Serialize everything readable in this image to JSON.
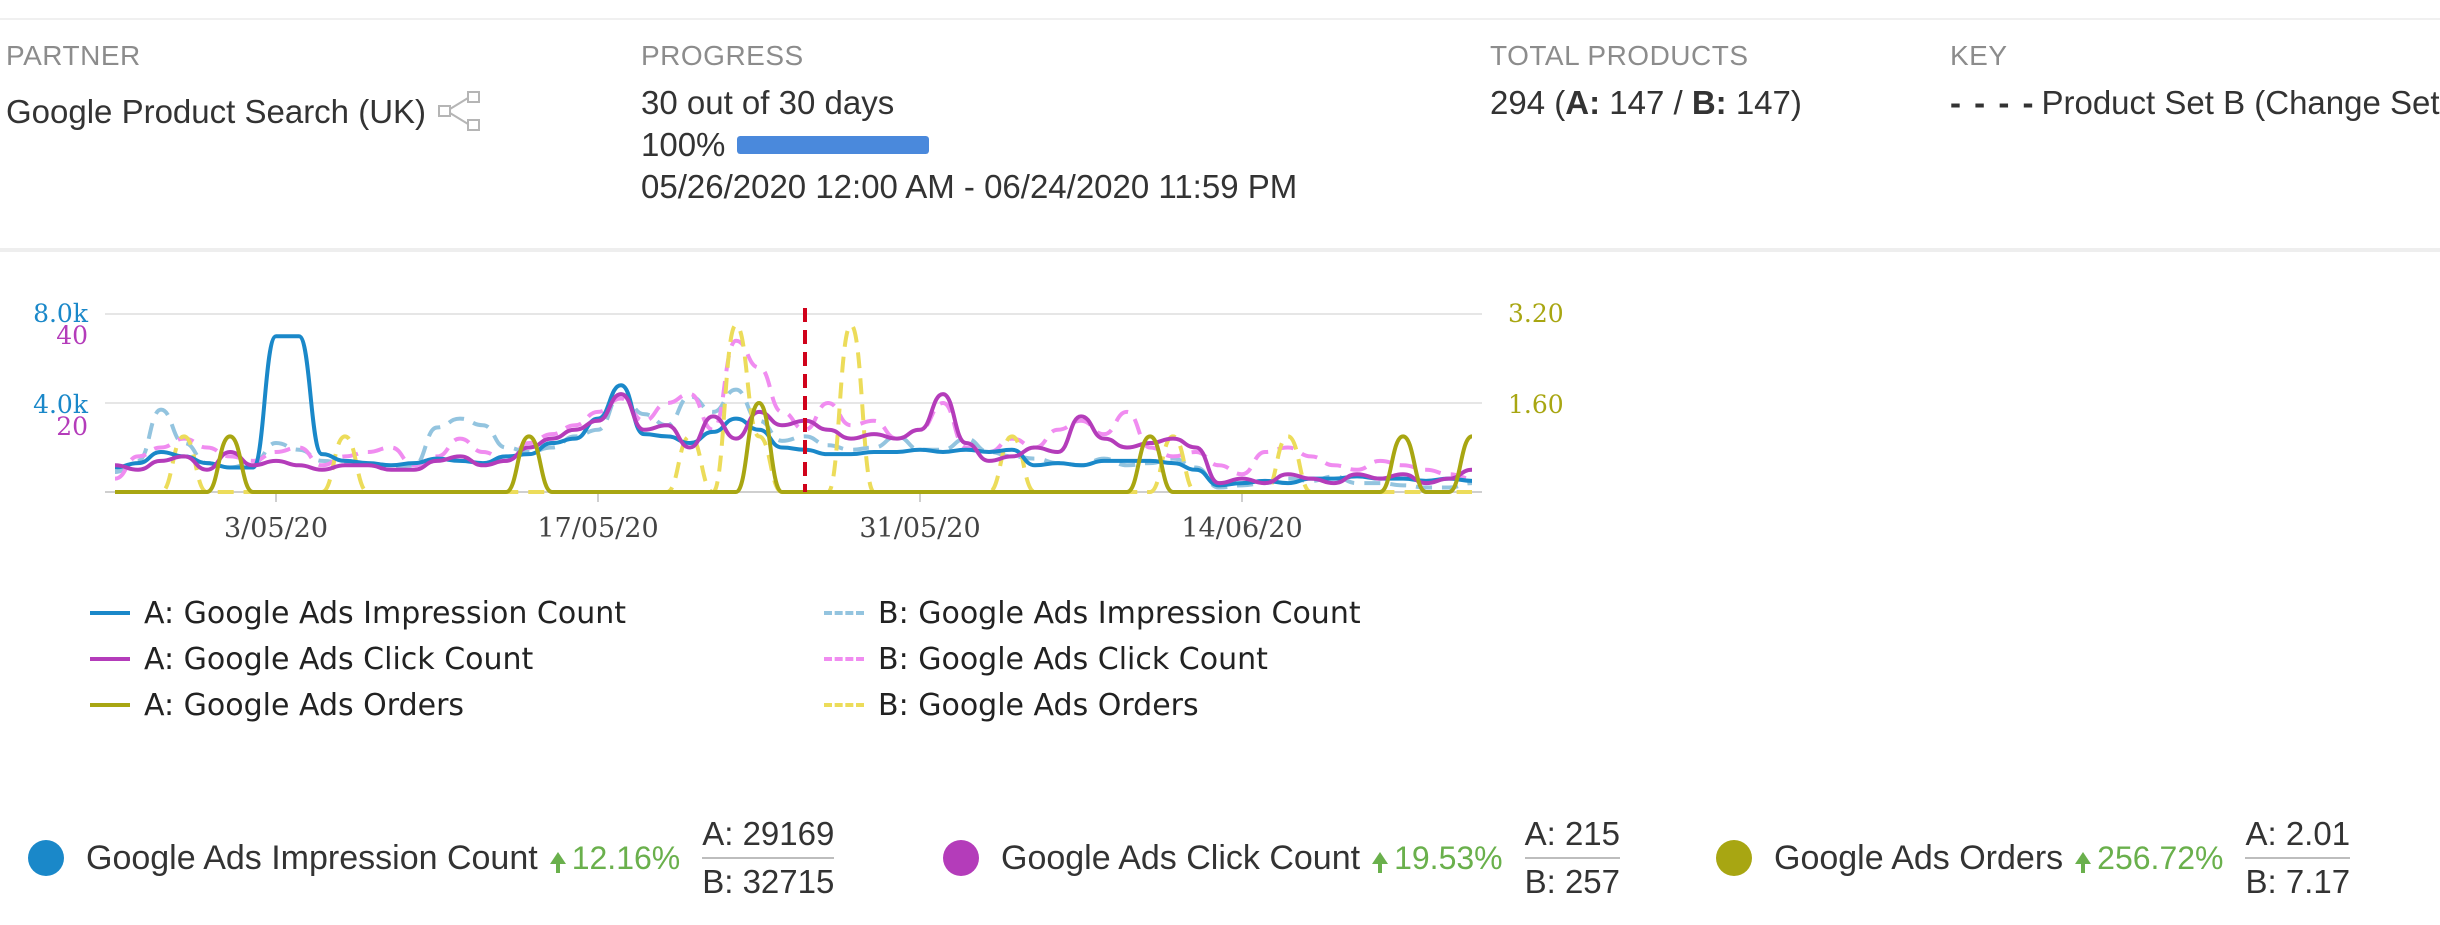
{
  "partner": {
    "label": "PARTNER",
    "name": "Google Product Search (UK)",
    "icon": "share-network-icon"
  },
  "progress": {
    "label": "PROGRESS",
    "days_text": "30 out of 30 days",
    "percent_text": "100%",
    "percent_value": 100,
    "range": "05/26/2020 12:00 AM - 06/24/2020 11:59 PM"
  },
  "total_products": {
    "label": "TOTAL PRODUCTS",
    "total": "294",
    "a_label": "A:",
    "a_value": "147",
    "b_label": "B:",
    "b_value": "147"
  },
  "key": {
    "label": "KEY",
    "dash": "- - - -",
    "text": "Product Set B (Change Set"
  },
  "colors": {
    "impression_a": "#1a88c9",
    "impression_b": "#93c4df",
    "click_a": "#b43cba",
    "click_b": "#f08cf0",
    "orders_a": "#a8a612",
    "orders_b": "#ecdc5a",
    "event_line": "#d0021b",
    "grid": "#e6e6e6",
    "up": "#6ab04c"
  },
  "chart_data": {
    "type": "line",
    "x_tick_labels": [
      "3/05/20",
      "17/05/20",
      "31/05/20",
      "14/06/20"
    ],
    "x_range": [
      "26/04/20",
      "24/06/20"
    ],
    "event_marker_date": "26/05/20",
    "axes": {
      "impressions": {
        "ticks": [
          "8.0k",
          "4.0k"
        ],
        "ylim": [
          0,
          8000
        ]
      },
      "clicks": {
        "ticks": [
          "40",
          "20"
        ],
        "ylim": [
          0,
          40
        ]
      },
      "orders": {
        "ticks": [
          "3.20",
          "1.60"
        ],
        "ylim": [
          0,
          3.2
        ]
      }
    },
    "series": [
      {
        "name": "A: Google Ads Impression Count",
        "axis": "impressions",
        "style": "solid",
        "values": [
          1100,
          1300,
          1800,
          1600,
          1300,
          1100,
          1100,
          7000,
          7000,
          1700,
          1400,
          1300,
          1200,
          1300,
          1500,
          1400,
          1300,
          1600,
          1700,
          2200,
          2400,
          3300,
          4800,
          2600,
          2500,
          2200,
          2700,
          3300,
          2800,
          2000,
          1900,
          1700,
          1700,
          1800,
          1800,
          1900,
          1800,
          1900,
          1800,
          1900,
          1200,
          1300,
          1200,
          1400,
          1400,
          1400,
          1300,
          1000,
          300,
          400,
          500,
          400,
          600,
          600,
          700,
          600,
          600,
          500,
          600,
          500
        ]
      },
      {
        "name": "B: Google Ads Impression Count",
        "axis": "impressions",
        "style": "dashed",
        "values": [
          900,
          1400,
          3700,
          2200,
          1300,
          1100,
          1300,
          2200,
          1900,
          1400,
          1300,
          1200,
          1100,
          1200,
          2900,
          3300,
          3000,
          2000,
          1800,
          2000,
          2500,
          2800,
          4400,
          3500,
          3000,
          4300,
          3600,
          4600,
          3200,
          2300,
          2500,
          2100,
          1900,
          2000,
          2500,
          1900,
          1900,
          2400,
          1800,
          1600,
          1500,
          1300,
          1200,
          1500,
          1200,
          1300,
          1500,
          1100,
          200,
          300,
          400,
          600,
          500,
          700,
          400,
          400,
          300,
          200,
          200,
          400
        ]
      },
      {
        "name": "A: Google Ads Click Count",
        "axis": "clicks",
        "style": "solid",
        "values": [
          6,
          5,
          7,
          8,
          5,
          9,
          6,
          7,
          6,
          5,
          6,
          6,
          5,
          5,
          7,
          8,
          6,
          7,
          10,
          12,
          14,
          16,
          22,
          14,
          15,
          10,
          17,
          12,
          18,
          15,
          16,
          14,
          12,
          13,
          12,
          14,
          22,
          11,
          7,
          8,
          10,
          9,
          17,
          12,
          10,
          11,
          12,
          10,
          2,
          3,
          2,
          4,
          3,
          2,
          4,
          3,
          4,
          2,
          3,
          5
        ]
      },
      {
        "name": "B: Google Ads Click Count",
        "axis": "clicks",
        "style": "dashed",
        "values": [
          3,
          8,
          10,
          12,
          10,
          8,
          7,
          9,
          10,
          6,
          8,
          9,
          10,
          6,
          8,
          12,
          9,
          7,
          11,
          13,
          15,
          18,
          21,
          16,
          20,
          22,
          14,
          34,
          28,
          18,
          14,
          20,
          15,
          16,
          12,
          14,
          20,
          10,
          9,
          12,
          10,
          14,
          16,
          13,
          18,
          10,
          8,
          9,
          6,
          4,
          9,
          10,
          8,
          6,
          5,
          7,
          6,
          5,
          4,
          3
        ]
      },
      {
        "name": "A: Google Ads Orders",
        "axis": "orders",
        "style": "solid",
        "values": [
          0,
          0,
          0,
          0,
          0,
          1,
          0,
          0,
          0,
          0,
          0,
          0,
          0,
          0,
          0,
          0,
          0,
          0,
          1,
          0,
          0,
          0,
          0,
          0,
          0,
          0,
          0,
          0,
          1.6,
          0,
          0,
          0,
          0,
          0,
          0,
          0,
          0,
          0,
          0,
          0,
          0,
          0,
          0,
          0,
          0,
          1,
          0,
          0,
          0,
          0,
          0,
          0,
          0,
          0,
          0,
          0,
          1,
          0,
          0,
          1
        ]
      },
      {
        "name": "B: Google Ads Orders",
        "axis": "orders",
        "style": "dashed",
        "values": [
          0,
          0,
          0,
          1,
          0,
          0,
          0,
          0,
          0,
          0,
          1,
          0,
          0,
          0,
          0,
          0,
          0,
          0,
          0,
          0,
          0,
          0,
          0,
          0,
          0,
          1,
          0,
          3,
          1,
          0,
          0,
          0,
          3.0,
          0,
          0,
          0,
          0,
          0,
          0,
          1,
          0,
          0,
          0,
          0,
          0,
          0,
          1,
          0,
          0,
          0,
          0,
          1,
          0,
          0,
          0,
          0,
          0,
          0,
          0,
          0
        ]
      }
    ]
  },
  "legend": {
    "left": [
      {
        "label": "A: Google Ads Impression Count",
        "color": "#1a88c9",
        "style": "solid"
      },
      {
        "label": "A: Google Ads Click Count",
        "color": "#b43cba",
        "style": "solid"
      },
      {
        "label": "A: Google Ads Orders",
        "color": "#a8a612",
        "style": "solid"
      }
    ],
    "right": [
      {
        "label": "B: Google Ads Impression Count",
        "color": "#93c4df",
        "style": "dashed"
      },
      {
        "label": "B: Google Ads Click Count",
        "color": "#f08cf0",
        "style": "dashed"
      },
      {
        "label": "B: Google Ads Orders",
        "color": "#ecdc5a",
        "style": "dashed"
      }
    ]
  },
  "summary": [
    {
      "name": "Google Ads Impression Count",
      "color": "#1a88c9",
      "change": "12.16%",
      "a": "A: 29169",
      "b": "B: 32715"
    },
    {
      "name": "Google Ads Click Count",
      "color": "#b43cba",
      "change": "19.53%",
      "a": "A: 215",
      "b": "B: 257"
    },
    {
      "name": "Google Ads Orders",
      "color": "#a8a612",
      "change": "256.72%",
      "a": "A: 2.01",
      "b": "B: 7.17"
    }
  ]
}
